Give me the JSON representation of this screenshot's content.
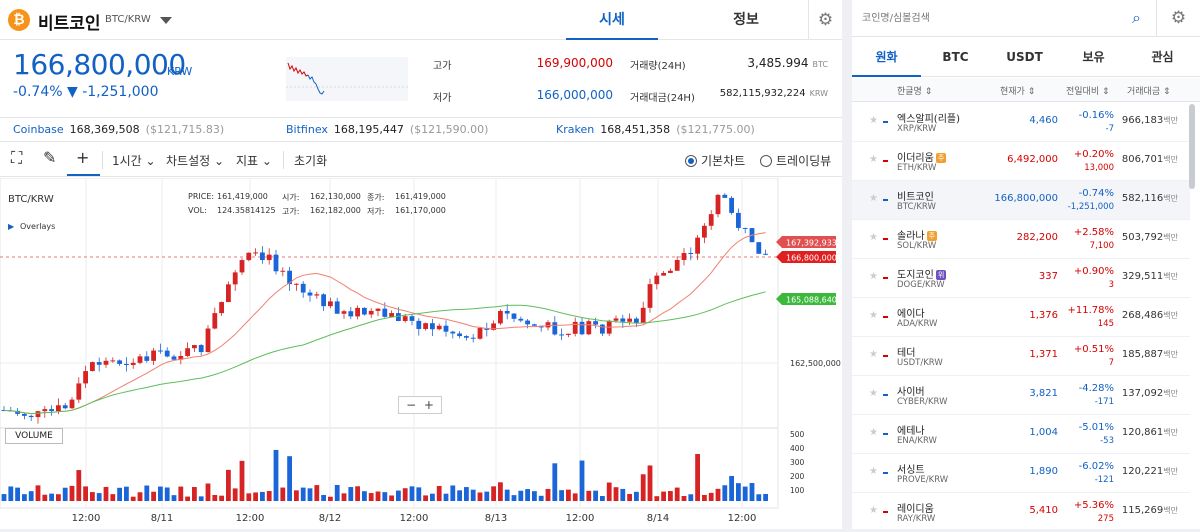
{
  "coin": {
    "name": "비트코인",
    "pair": "BTC/KRW",
    "logo": "₿"
  },
  "tabs": {
    "market": "시세",
    "info": "정보"
  },
  "price": {
    "current": "166,800,000",
    "unit": "KRW",
    "change": "-0.74% ▼ -1,251,000"
  },
  "stats": {
    "high_label": "고가",
    "high": "169,900,000",
    "low_label": "저가",
    "low": "166,000,000",
    "vol_label": "거래량(24H)",
    "vol": "3,485.994",
    "vol_unit": "BTC",
    "amt_label": "거래대금(24H)",
    "amt": "582,115,932,224",
    "amt_unit": "KRW"
  },
  "exchanges": [
    {
      "name": "Coinbase",
      "price": "168,369,508",
      "usd": "($121,715.83)"
    },
    {
      "name": "Bitfinex",
      "price": "168,195,447",
      "usd": "($121,590.00)"
    },
    {
      "name": "Kraken",
      "price": "168,451,358",
      "usd": "($121,775.00)"
    }
  ],
  "toolbar": {
    "interval": "1시간 ⌄",
    "settings": "차트설정 ⌄",
    "indicator": "지표 ⌄",
    "reset": "초기화",
    "basic": "기본차트",
    "tradingview": "트레이딩뷰"
  },
  "chart_info": {
    "pair": "BTC/KRW",
    "overlays": "Overlays",
    "price_label": "PRICE:",
    "price_val": "161,419,000",
    "vol_label": "VOL:",
    "vol_val": "124.35814125",
    "open_label": "시가:",
    "open_val": "162,130,000",
    "high_label": "고가:",
    "high_val": "162,182,000",
    "close_label": "종가:",
    "close_val": "161,419,000",
    "low_label": "저가:",
    "low_val": "161,170,000",
    "volume_btn": "VOLUME"
  },
  "chart_data": {
    "type": "candlestick",
    "x_ticks": [
      "12:00",
      "8/11",
      "12:00",
      "8/12",
      "12:00",
      "8/13",
      "12:00",
      "8/14",
      "12:00"
    ],
    "y_ticks": [
      "162,500,000"
    ],
    "price_tags": [
      {
        "label": "167,392,933",
        "color": "#e05050"
      },
      {
        "label": "166,800,000",
        "color": "#e02020"
      },
      {
        "label": "165,088,640",
        "color": "#3cb83c"
      }
    ],
    "volume_ticks": [
      "500",
      "400",
      "300",
      "200",
      "100"
    ]
  },
  "search": {
    "placeholder": "코인명/심볼검색"
  },
  "market_tabs": [
    "원화",
    "BTC",
    "USDT",
    "보유",
    "관심"
  ],
  "columns": {
    "name": "한글명 ⇕",
    "price": "현재가 ⇕",
    "change": "전일대비 ⇕",
    "volume": "거래대금 ⇕"
  },
  "coins": [
    {
      "name": "엑스알피(리플)",
      "pair": "XRP/KRW",
      "price": "4,460",
      "pct": "-0.16%",
      "abs": "-7",
      "vol": "966,183",
      "unit": "백만",
      "dir": "dn",
      "tag": ""
    },
    {
      "name": "이더리움",
      "pair": "ETH/KRW",
      "price": "6,492,000",
      "pct": "+0.20%",
      "abs": "13,000",
      "vol": "806,701",
      "unit": "백만",
      "dir": "up",
      "tag": "주"
    },
    {
      "name": "비트코인",
      "pair": "BTC/KRW",
      "price": "166,800,000",
      "pct": "-0.74%",
      "abs": "-1,251,000",
      "vol": "582,116",
      "unit": "백만",
      "dir": "dn",
      "tag": ""
    },
    {
      "name": "솔라나",
      "pair": "SOL/KRW",
      "price": "282,200",
      "pct": "+2.58%",
      "abs": "7,100",
      "vol": "503,792",
      "unit": "백만",
      "dir": "up",
      "tag": "주"
    },
    {
      "name": "도지코인",
      "pair": "DOGE/KRW",
      "price": "337",
      "pct": "+0.90%",
      "abs": "3",
      "vol": "329,511",
      "unit": "백만",
      "dir": "up",
      "tag": "위"
    },
    {
      "name": "에이다",
      "pair": "ADA/KRW",
      "price": "1,376",
      "pct": "+11.78%",
      "abs": "145",
      "vol": "268,486",
      "unit": "백만",
      "dir": "up",
      "tag": ""
    },
    {
      "name": "테더",
      "pair": "USDT/KRW",
      "price": "1,371",
      "pct": "+0.51%",
      "abs": "7",
      "vol": "185,887",
      "unit": "백만",
      "dir": "up",
      "tag": ""
    },
    {
      "name": "사이버",
      "pair": "CYBER/KRW",
      "price": "3,821",
      "pct": "-4.28%",
      "abs": "-171",
      "vol": "137,092",
      "unit": "백만",
      "dir": "dn",
      "tag": ""
    },
    {
      "name": "에테나",
      "pair": "ENA/KRW",
      "price": "1,004",
      "pct": "-5.01%",
      "abs": "-53",
      "vol": "120,861",
      "unit": "백만",
      "dir": "dn",
      "tag": ""
    },
    {
      "name": "서싱트",
      "pair": "PROVE/KRW",
      "price": "1,890",
      "pct": "-6.02%",
      "abs": "-121",
      "vol": "120,221",
      "unit": "백만",
      "dir": "dn",
      "tag": ""
    },
    {
      "name": "레이디움",
      "pair": "RAY/KRW",
      "price": "5,410",
      "pct": "+5.36%",
      "abs": "275",
      "vol": "115,269",
      "unit": "백만",
      "dir": "up",
      "tag": ""
    }
  ]
}
